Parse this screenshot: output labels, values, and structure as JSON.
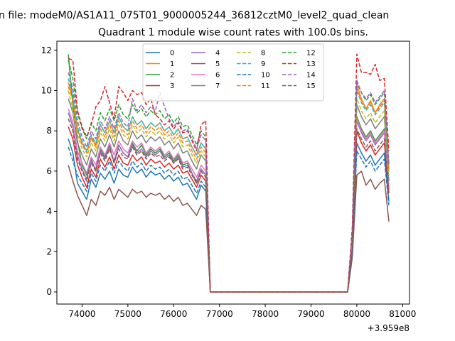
{
  "chart_data": {
    "type": "line",
    "suptitle": "n file: modeM0/AS1A11_075T01_9000005244_36812cztM0_level2_quad_clean",
    "title": "Quadrant 1 module wise count rates with 100.0s bins.",
    "xlabel": "",
    "ylabel": "",
    "x_offset_label": "+3.959e8",
    "xlim": [
      73450,
      81150
    ],
    "ylim": [
      -0.6,
      12.45
    ],
    "xticks": [
      74000,
      75000,
      76000,
      77000,
      78000,
      79000,
      80000,
      81000
    ],
    "xtick_labels": [
      "74000",
      "75000",
      "76000",
      "77000",
      "78000",
      "79000",
      "80000",
      "81000"
    ],
    "yticks": [
      0,
      2,
      4,
      6,
      8,
      10,
      12
    ],
    "ytick_labels": [
      "0",
      "2",
      "4",
      "6",
      "8",
      "10",
      "12"
    ],
    "legend_location": "upper center",
    "legend_ncol": 4,
    "seg1_x_start": 73700,
    "seg1_step": 100,
    "seg1_points": 31,
    "drop_x": 76800,
    "gap_x_end": 79800,
    "seg2_x_start": 79900,
    "seg2_step": 100,
    "seg2_points": 9,
    "series": [
      {
        "name": "0",
        "color": "#1f77b4",
        "dash": "solid",
        "values1": [
          7.6,
          6.9,
          5.4,
          5.0,
          4.6,
          5.6,
          5.2,
          5.9,
          5.6,
          6.0,
          5.4,
          6.1,
          5.8,
          5.7,
          6.2,
          5.9,
          6.1,
          5.7,
          6.0,
          5.8,
          5.9,
          5.6,
          5.8,
          5.5,
          5.7,
          5.3,
          5.4,
          5.0,
          4.6,
          5.3,
          5.0
        ],
        "values2": [
          2.0,
          7.4,
          6.9,
          6.5,
          6.8,
          6.3,
          6.6,
          6.9,
          4.5
        ]
      },
      {
        "name": "1",
        "color": "#ff7f0e",
        "dash": "solid",
        "values1": [
          10.4,
          9.6,
          8.1,
          7.4,
          7.0,
          7.7,
          7.3,
          8.3,
          7.9,
          8.5,
          7.9,
          8.7,
          8.2,
          8.0,
          8.7,
          8.3,
          8.5,
          8.1,
          8.4,
          8.2,
          8.4,
          8.0,
          8.2,
          7.8,
          8.1,
          7.6,
          7.7,
          7.2,
          6.8,
          7.4,
          7.1
        ],
        "values2": [
          2.8,
          10.3,
          9.6,
          9.1,
          9.5,
          8.9,
          9.3,
          9.6,
          6.1
        ]
      },
      {
        "name": "2",
        "color": "#2ca02c",
        "dash": "solid",
        "values1": [
          11.8,
          9.3,
          7.5,
          6.3,
          5.8,
          6.6,
          6.0,
          7.1,
          6.7,
          7.3,
          6.4,
          7.3,
          6.9,
          6.7,
          7.4,
          7.0,
          7.3,
          6.8,
          7.1,
          6.9,
          7.1,
          6.7,
          6.9,
          6.5,
          6.8,
          6.3,
          6.4,
          5.9,
          5.4,
          6.1,
          5.8
        ],
        "values2": [
          2.4,
          8.7,
          8.1,
          7.7,
          8.0,
          7.5,
          7.8,
          8.1,
          5.2
        ]
      },
      {
        "name": "3",
        "color": "#d62728",
        "dash": "solid",
        "values1": [
          8.2,
          7.6,
          6.3,
          5.7,
          5.2,
          6.1,
          5.7,
          6.6,
          6.2,
          6.7,
          6.1,
          6.8,
          6.4,
          6.3,
          6.8,
          6.5,
          6.7,
          6.3,
          6.6,
          6.4,
          6.5,
          6.2,
          6.4,
          6.1,
          6.3,
          5.9,
          6.0,
          5.6,
          5.2,
          5.8,
          5.5
        ],
        "values2": [
          2.2,
          8.0,
          7.4,
          7.0,
          7.3,
          6.8,
          7.1,
          7.4,
          4.9
        ]
      },
      {
        "name": "4",
        "color": "#9467bd",
        "dash": "solid",
        "values1": [
          8.9,
          8.2,
          6.8,
          6.1,
          5.6,
          6.5,
          6.1,
          7.0,
          6.6,
          7.2,
          6.5,
          7.3,
          6.9,
          6.7,
          7.3,
          6.9,
          7.1,
          6.7,
          7.0,
          6.8,
          7.0,
          6.6,
          6.8,
          6.4,
          6.7,
          6.2,
          6.3,
          5.9,
          5.5,
          6.1,
          5.8
        ],
        "values2": [
          2.3,
          8.5,
          7.9,
          7.5,
          7.8,
          7.3,
          7.6,
          7.9,
          5.1
        ]
      },
      {
        "name": "5",
        "color": "#8c564b",
        "dash": "solid",
        "values1": [
          6.3,
          5.5,
          4.8,
          4.3,
          3.8,
          4.6,
          4.3,
          5.0,
          4.8,
          5.2,
          4.6,
          5.1,
          4.9,
          4.7,
          5.1,
          4.9,
          5.0,
          4.7,
          4.9,
          4.8,
          4.9,
          4.6,
          4.8,
          4.5,
          4.7,
          4.3,
          4.4,
          4.1,
          3.8,
          4.3,
          4.1
        ],
        "values2": [
          1.7,
          5.8,
          6.0,
          5.3,
          5.6,
          5.1,
          5.4,
          5.6,
          3.5
        ]
      },
      {
        "name": "6",
        "color": "#e377c2",
        "dash": "solid",
        "values1": [
          9.1,
          8.4,
          7.0,
          6.4,
          5.9,
          6.7,
          6.3,
          7.2,
          6.8,
          7.4,
          6.8,
          7.5,
          7.1,
          6.9,
          7.5,
          7.2,
          7.4,
          6.9,
          7.2,
          7.0,
          7.2,
          6.8,
          7.0,
          6.6,
          6.9,
          6.4,
          6.5,
          6.1,
          5.7,
          6.3,
          6.0
        ],
        "values2": [
          2.4,
          8.6,
          8.0,
          7.6,
          7.9,
          7.4,
          7.7,
          8.0,
          5.2
        ]
      },
      {
        "name": "7",
        "color": "#7f7f7f",
        "dash": "solid",
        "values1": [
          9.6,
          8.9,
          7.4,
          6.8,
          6.3,
          7.1,
          6.7,
          7.6,
          7.2,
          7.8,
          7.2,
          8.0,
          7.5,
          7.3,
          8.0,
          7.6,
          7.8,
          7.4,
          7.7,
          7.5,
          7.7,
          7.3,
          7.5,
          7.1,
          7.4,
          6.9,
          7.0,
          6.5,
          6.1,
          6.8,
          6.5
        ],
        "values2": [
          2.5,
          9.3,
          8.7,
          8.3,
          8.6,
          8.1,
          8.4,
          8.7,
          5.5
        ]
      },
      {
        "name": "8",
        "color": "#bcbd22",
        "dash": "dashed",
        "values1": [
          10.0,
          9.0,
          7.8,
          7.1,
          6.7,
          7.4,
          7.0,
          7.9,
          7.5,
          8.1,
          7.5,
          8.3,
          7.8,
          7.6,
          8.3,
          7.9,
          8.1,
          7.7,
          8.0,
          7.8,
          8.0,
          7.6,
          7.8,
          7.4,
          7.7,
          7.2,
          7.3,
          6.8,
          6.4,
          7.0,
          6.7
        ],
        "values2": [
          2.7,
          9.6,
          9.0,
          8.6,
          8.9,
          8.4,
          8.7,
          9.0,
          5.8
        ]
      },
      {
        "name": "9",
        "color": "#17becf",
        "dash": "dashed",
        "values1": [
          10.6,
          9.8,
          8.2,
          7.5,
          7.0,
          7.8,
          7.4,
          8.3,
          7.9,
          8.5,
          7.9,
          8.7,
          8.2,
          8.0,
          8.7,
          8.3,
          8.5,
          8.1,
          8.4,
          8.2,
          8.4,
          8.0,
          8.2,
          7.8,
          8.1,
          7.6,
          7.7,
          7.2,
          6.8,
          7.4,
          7.1
        ],
        "values2": [
          2.8,
          10.0,
          9.4,
          9.0,
          9.3,
          8.8,
          9.1,
          9.4,
          6.0
        ]
      },
      {
        "name": "10",
        "color": "#1f77b4",
        "dash": "dashed",
        "values1": [
          7.2,
          6.5,
          5.8,
          5.4,
          5.0,
          5.9,
          5.5,
          6.3,
          6.0,
          6.5,
          5.9,
          6.5,
          6.2,
          6.0,
          6.5,
          6.2,
          6.4,
          6.0,
          6.3,
          6.1,
          6.2,
          5.9,
          6.1,
          5.8,
          6.0,
          5.6,
          5.7,
          5.3,
          4.9,
          5.5,
          5.2
        ],
        "values2": [
          1.9,
          7.0,
          6.6,
          6.2,
          6.5,
          6.0,
          6.3,
          6.6,
          4.3
        ]
      },
      {
        "name": "11",
        "color": "#ff7f0e",
        "dash": "dashed",
        "values1": [
          10.2,
          9.5,
          8.0,
          7.3,
          6.9,
          7.6,
          7.2,
          8.1,
          7.7,
          8.3,
          7.7,
          8.5,
          8.0,
          7.8,
          8.5,
          8.1,
          8.3,
          7.9,
          8.2,
          8.0,
          8.2,
          7.8,
          8.0,
          7.6,
          7.9,
          7.4,
          7.5,
          7.0,
          6.6,
          7.2,
          6.9
        ],
        "values2": [
          2.7,
          10.1,
          9.5,
          9.1,
          9.4,
          8.9,
          9.2,
          9.5,
          6.1
        ]
      },
      {
        "name": "12",
        "color": "#2ca02c",
        "dash": "dashed",
        "values1": [
          11.5,
          10.6,
          8.9,
          8.1,
          7.6,
          8.4,
          8.0,
          8.9,
          8.5,
          9.1,
          8.5,
          9.3,
          8.8,
          8.6,
          9.3,
          8.9,
          9.1,
          8.7,
          9.0,
          8.8,
          9.0,
          8.6,
          8.8,
          8.4,
          8.7,
          8.2,
          8.3,
          7.8,
          7.3,
          8.0,
          7.7
        ],
        "values2": [
          3.0,
          10.4,
          9.9,
          9.5,
          9.8,
          9.3,
          9.6,
          9.9,
          6.3
        ]
      },
      {
        "name": "13",
        "color": "#d62728",
        "dash": "dashed",
        "values1": [
          11.6,
          11.5,
          9.0,
          8.2,
          7.7,
          8.3,
          9.2,
          9.5,
          10.2,
          9.4,
          8.6,
          10.2,
          9.9,
          9.5,
          10.0,
          9.8,
          9.9,
          9.3,
          9.6,
          8.8,
          8.6,
          8.3,
          8.5,
          8.1,
          8.4,
          7.9,
          8.0,
          7.5,
          7.0,
          8.3,
          8.5
        ],
        "values2": [
          3.2,
          11.8,
          10.9,
          10.9,
          10.8,
          11.3,
          10.5,
          10.6,
          7.0
        ]
      },
      {
        "name": "14",
        "color": "#9467bd",
        "dash": "dashed",
        "values1": [
          10.9,
          10.1,
          8.5,
          7.7,
          7.2,
          8.0,
          7.6,
          8.5,
          8.1,
          8.7,
          8.1,
          8.9,
          8.4,
          8.2,
          9.6,
          9.0,
          9.3,
          8.9,
          9.2,
          9.0,
          9.9,
          9.2,
          8.6,
          8.2,
          8.5,
          8.0,
          8.1,
          7.6,
          7.1,
          7.8,
          7.5
        ],
        "values2": [
          2.9,
          10.5,
          9.9,
          9.6,
          9.9,
          9.4,
          9.7,
          10.0,
          6.4
        ]
      },
      {
        "name": "15",
        "color": "#8c564b",
        "dash": "dashed",
        "values1": [
          8.6,
          8.0,
          6.6,
          6.0,
          5.5,
          6.4,
          6.0,
          6.9,
          6.5,
          7.1,
          6.4,
          7.1,
          6.7,
          6.6,
          7.2,
          6.8,
          7.0,
          6.6,
          6.9,
          6.7,
          6.8,
          6.5,
          6.7,
          6.4,
          6.6,
          6.1,
          6.2,
          5.8,
          5.4,
          6.0,
          5.7
        ],
        "values2": [
          2.2,
          8.1,
          7.6,
          7.2,
          7.5,
          7.0,
          7.3,
          7.6,
          4.9
        ]
      }
    ]
  }
}
